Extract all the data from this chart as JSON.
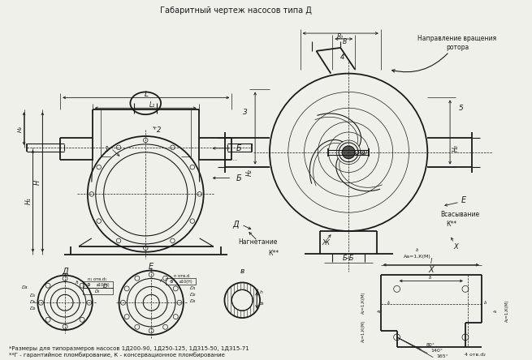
{
  "title": "Габаритный чертеж насосов типа Д",
  "footnote1": "*Размеры для типоразмеров насосов 1Д200-90, 1Д250-125, 1Д315-50, 1Д315-71",
  "footnote2": "**Г - гарантийное пломбирование, К - консервационное пломбирование",
  "bg_color": "#f0f0eb",
  "line_color": "#1a1a1a",
  "rot_text": "Направление вращения\nротора",
  "nagnets": "Нагнетание",
  "vsas": "Всасывание",
  "bb_label": "Б-Б",
  "kstar": "К**"
}
